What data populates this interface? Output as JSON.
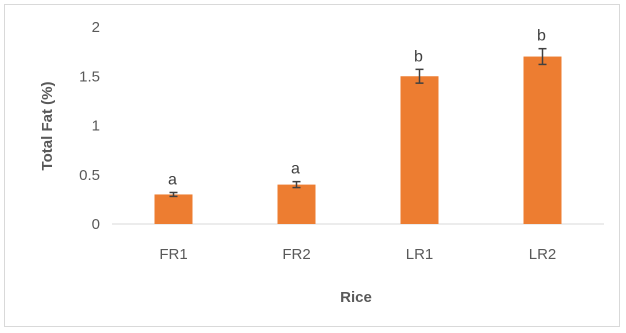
{
  "chart_data": {
    "type": "bar",
    "categories": [
      "FR1",
      "FR2",
      "LR1",
      "LR2"
    ],
    "values": [
      0.3,
      0.4,
      1.5,
      1.7
    ],
    "errors": [
      0.02,
      0.03,
      0.07,
      0.08
    ],
    "significance_labels": [
      "a",
      "a",
      "b",
      "b"
    ],
    "xlabel": "Rice",
    "ylabel": "Total Fat  (%)",
    "ylim": [
      0,
      2
    ],
    "yticks": [
      "0",
      "0.5",
      "1",
      "1.5",
      "2"
    ],
    "grid": false,
    "bar_color": "#ED7D31",
    "error_bar_color": "#404040"
  }
}
